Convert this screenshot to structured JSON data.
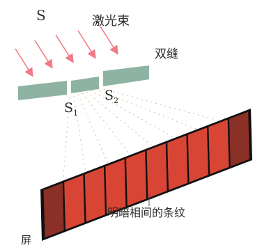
{
  "labels": {
    "source": "S",
    "laser": "激光束",
    "double_slit": "双缝",
    "slit1_main": "S",
    "slit1_sub": "1",
    "slit2_main": "S",
    "slit2_sub": "2",
    "screen": "屏",
    "fringes": "明暗相间的条纹"
  },
  "colors": {
    "ray": "#f07a86",
    "slit_plate": "#8fb3a3",
    "fringe_bright": "#ef4b3a",
    "fringe_dark": "#111111",
    "dotted_wave": "#d9c9a8",
    "text": "#2b2b2b"
  },
  "icons": {
    "ray": "arrow",
    "slit_plate": "rectangle",
    "screen": "parallelogram"
  }
}
